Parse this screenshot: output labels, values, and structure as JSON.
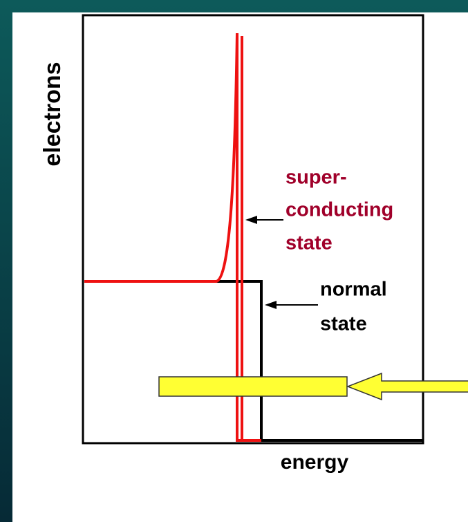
{
  "axis_labels": {
    "y": "electrons",
    "x": "energy"
  },
  "labels": {
    "superconducting": [
      "super-",
      "conducting",
      "state"
    ],
    "normal": [
      "normal",
      "state"
    ]
  }
}
